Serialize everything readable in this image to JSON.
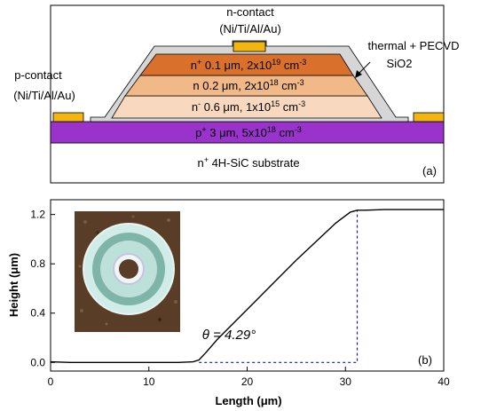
{
  "panel_a": {
    "n_contact_label_1": "n-contact",
    "n_contact_label_2": "(Ni/Ti/Al/Au)",
    "p_contact_label_1": "p-contact",
    "p_contact_label_2": "(Ni/Ti/Al/Au)",
    "passivation_label_1": "thermal + PECVD",
    "passivation_label_2": "SiO2",
    "layer_n_plus": {
      "prefix": "n",
      "sup": "+",
      "text": " 0.1 μm, 2x10",
      "exp": "19",
      "unit": " cm",
      "unit_exp": "-3"
    },
    "layer_n": {
      "prefix": "n",
      "sup": "",
      "text": " 0.2 μm, 2x10",
      "exp": "18",
      "unit": " cm",
      "unit_exp": "-3"
    },
    "layer_n_minus": {
      "prefix": "n",
      "sup": "-",
      "text": " 0.6 μm, 1x10",
      "exp": "15",
      "unit": " cm",
      "unit_exp": "-3"
    },
    "layer_p_plus": {
      "prefix": "p",
      "sup": "+",
      "text": " 3 μm, 5x10",
      "exp": "18",
      "unit": " cm",
      "unit_exp": "-3"
    },
    "substrate": {
      "prefix": "n",
      "sup": "+",
      "text": " 4H-SiC substrate"
    },
    "panel_label": "(a)",
    "colors": {
      "n_plus": "#d9712c",
      "n": "#f0b987",
      "n_minus": "#f8d9c0",
      "p_plus": "#9933cc",
      "contact": "#f2b611",
      "oxide": "#d4d4d4"
    }
  },
  "chart_data": {
    "type": "line",
    "xlabel": "Length (μm)",
    "ylabel": "Height (μm)",
    "xlim": [
      0,
      40
    ],
    "ylim": [
      -0.07,
      1.32
    ],
    "x_ticks": [
      0,
      10,
      20,
      30,
      40
    ],
    "y_ticks": [
      0.0,
      0.4,
      0.8,
      1.2
    ],
    "x_tick_labels": [
      "0",
      "10",
      "20",
      "30",
      "40"
    ],
    "y_tick_labels": [
      "0.0",
      "0.4",
      "0.8",
      "1.2"
    ],
    "profile": {
      "x": [
        0,
        2,
        6,
        10,
        13,
        14.5,
        15.1,
        15.8,
        17,
        19,
        21,
        23,
        25,
        27,
        29,
        30.5,
        31.2,
        32,
        34,
        36,
        38,
        40
      ],
      "y": [
        0.005,
        0.0,
        0.0,
        0.0,
        0.0,
        0.005,
        0.02,
        0.08,
        0.19,
        0.35,
        0.51,
        0.67,
        0.83,
        0.98,
        1.13,
        1.22,
        1.235,
        1.235,
        1.24,
        1.24,
        1.24,
        1.24
      ]
    },
    "guide": {
      "x_start": 15.1,
      "x_end": 31.2,
      "y_top": 1.235
    },
    "annotation": "θ = 4.29°",
    "panel_label": "(b)"
  }
}
